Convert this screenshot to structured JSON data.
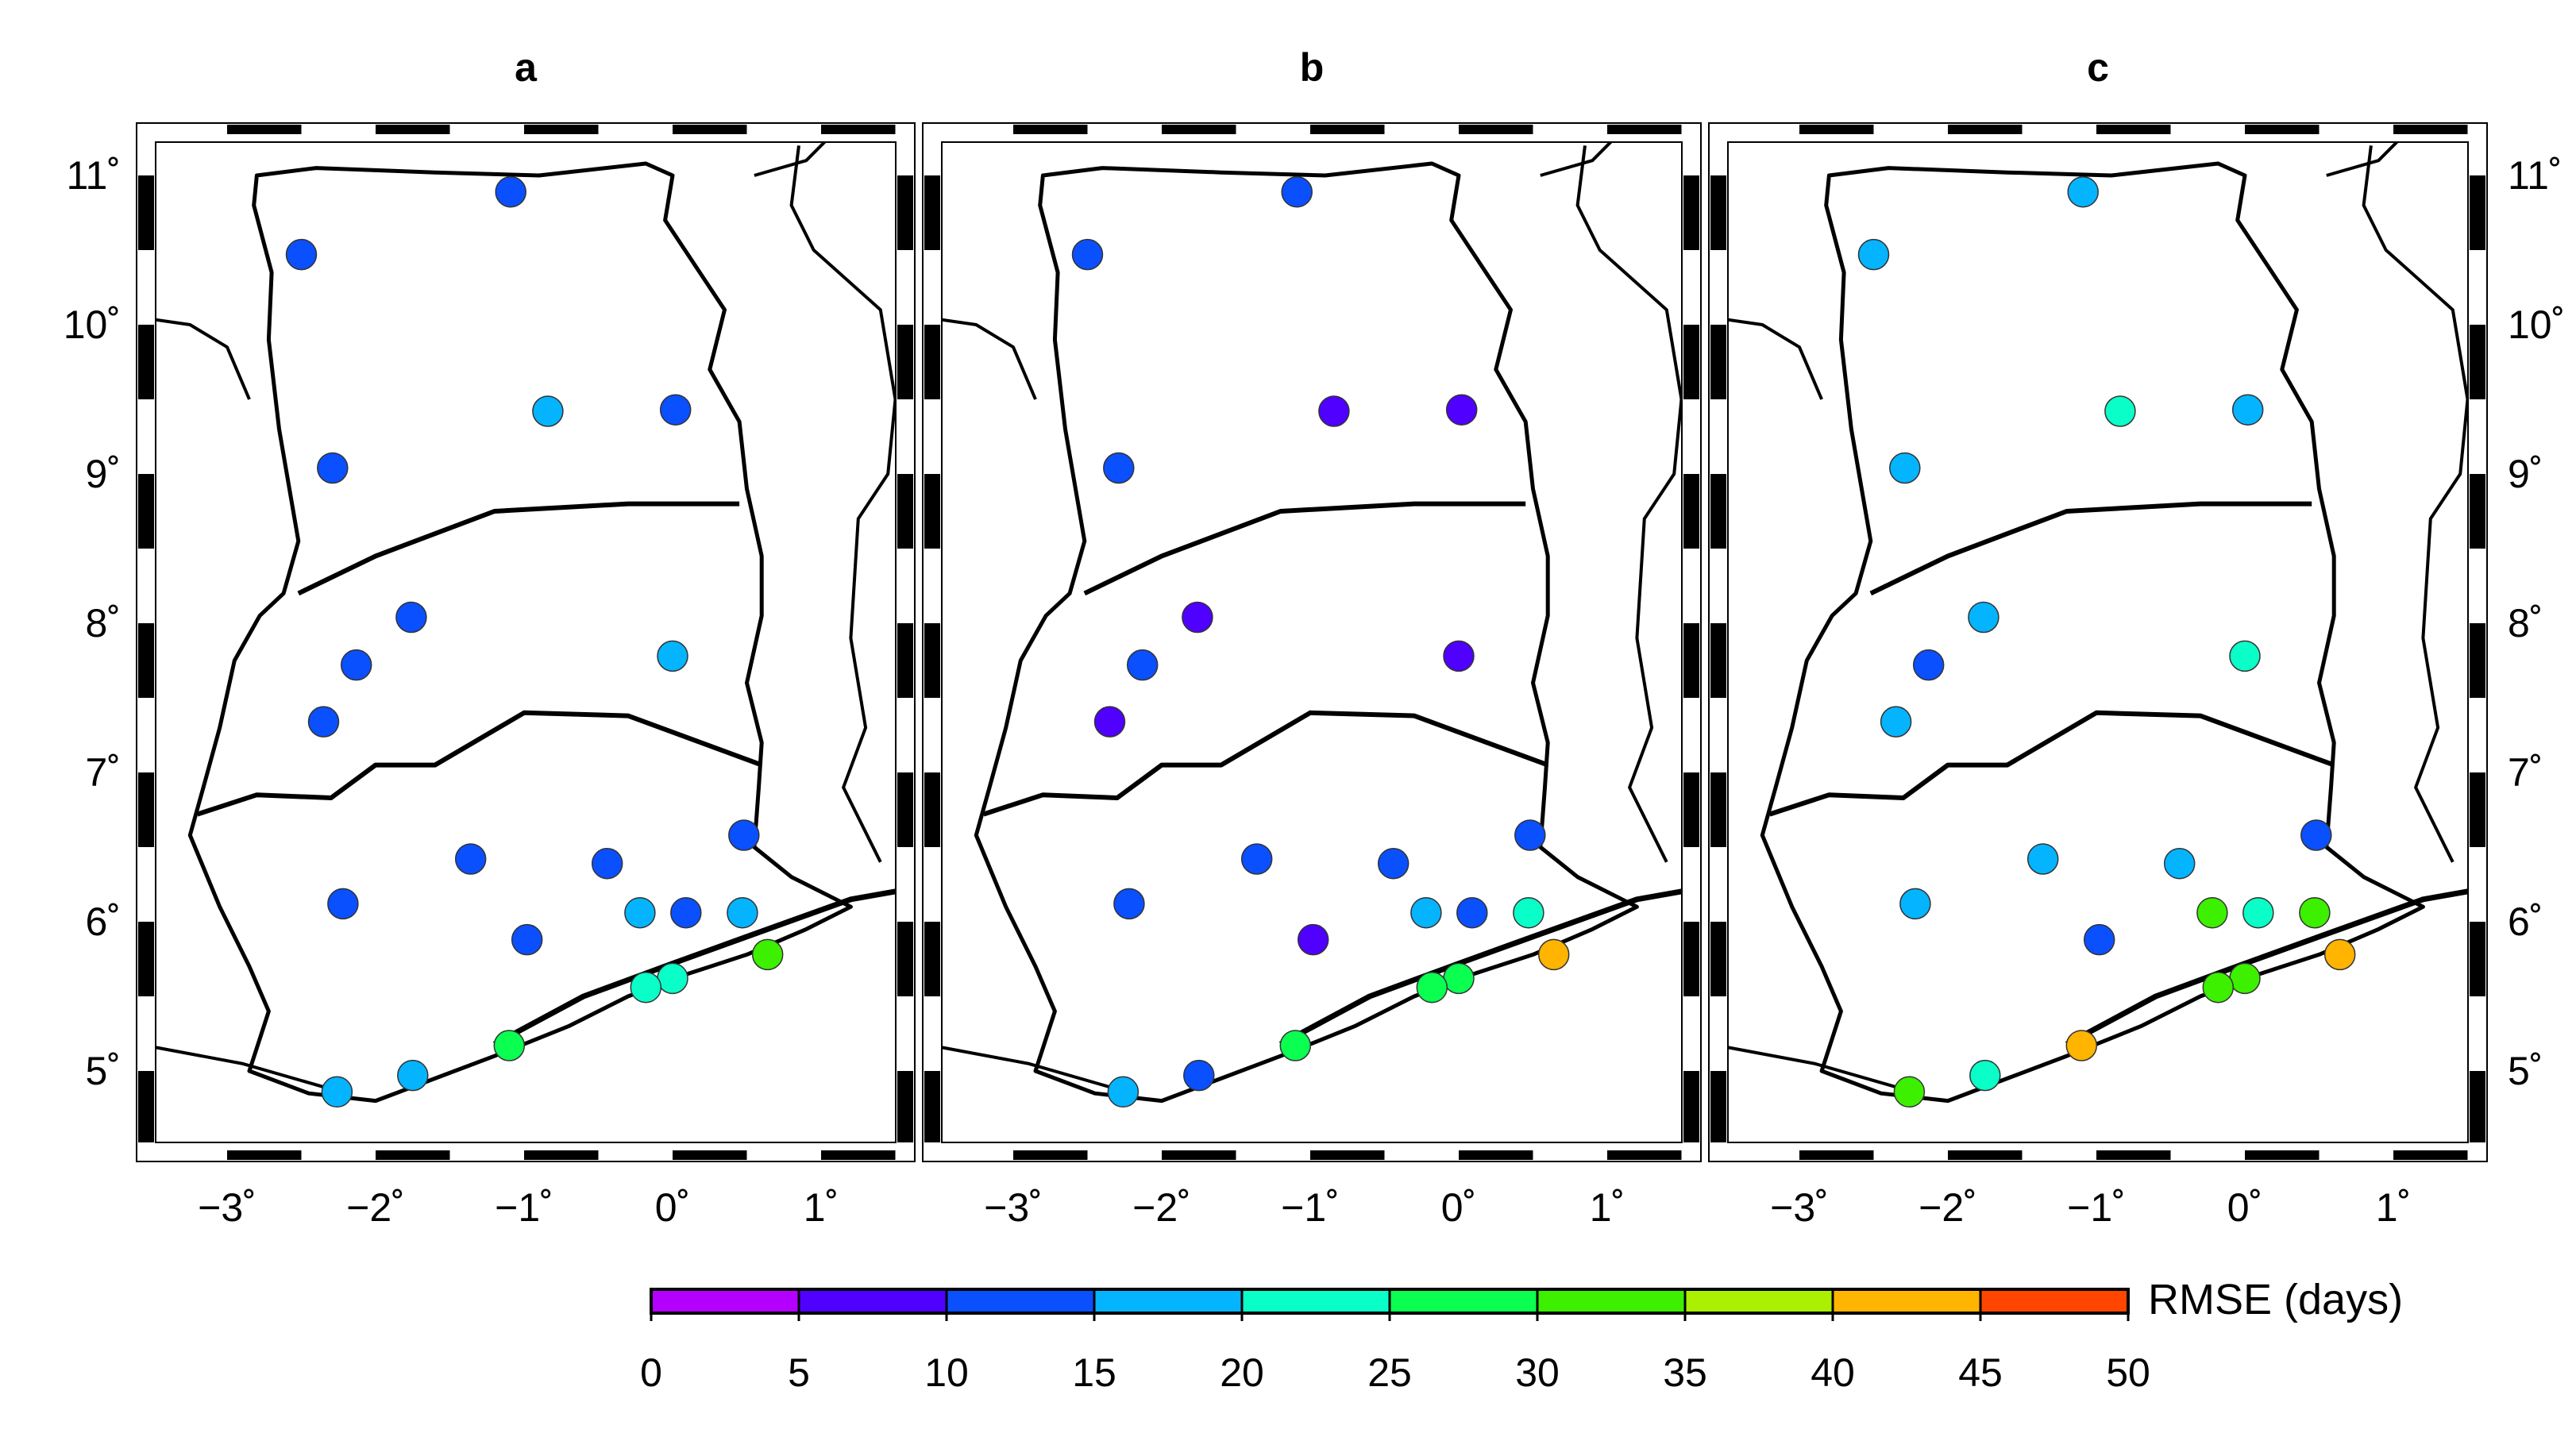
{
  "panels": [
    {
      "label": "a",
      "stations": [
        {
          "lon": -1.09,
          "lat": 10.89,
          "rmse": 12
        },
        {
          "lon": -2.5,
          "lat": 10.47,
          "rmse": 12
        },
        {
          "lon": -0.84,
          "lat": 9.42,
          "rmse": 19
        },
        {
          "lon": 0.02,
          "lat": 9.43,
          "rmse": 12
        },
        {
          "lon": -2.29,
          "lat": 9.04,
          "rmse": 12
        },
        {
          "lon": -1.76,
          "lat": 8.04,
          "rmse": 12
        },
        {
          "lon": -2.13,
          "lat": 7.72,
          "rmse": 12
        },
        {
          "lon": -2.35,
          "lat": 7.34,
          "rmse": 12
        },
        {
          "lon": 0.0,
          "lat": 7.78,
          "rmse": 17
        },
        {
          "lon": 0.48,
          "lat": 6.58,
          "rmse": 12
        },
        {
          "lon": -1.36,
          "lat": 6.42,
          "rmse": 12
        },
        {
          "lon": -0.44,
          "lat": 6.39,
          "rmse": 12
        },
        {
          "lon": -2.22,
          "lat": 6.12,
          "rmse": 12
        },
        {
          "lon": -0.22,
          "lat": 6.06,
          "rmse": 17
        },
        {
          "lon": 0.09,
          "lat": 6.06,
          "rmse": 12
        },
        {
          "lon": 0.47,
          "lat": 6.06,
          "rmse": 19
        },
        {
          "lon": -0.98,
          "lat": 5.88,
          "rmse": 12
        },
        {
          "lon": 0.64,
          "lat": 5.78,
          "rmse": 34
        },
        {
          "lon": 0.0,
          "lat": 5.62,
          "rmse": 22
        },
        {
          "lon": -0.18,
          "lat": 5.56,
          "rmse": 22
        },
        {
          "lon": -1.1,
          "lat": 5.17,
          "rmse": 28
        },
        {
          "lon": -1.75,
          "lat": 4.97,
          "rmse": 17
        },
        {
          "lon": -2.26,
          "lat": 4.86,
          "rmse": 17
        }
      ]
    },
    {
      "label": "b",
      "stations": [
        {
          "lon": -1.09,
          "lat": 10.89,
          "rmse": 12
        },
        {
          "lon": -2.5,
          "lat": 10.47,
          "rmse": 12
        },
        {
          "lon": -0.84,
          "lat": 9.42,
          "rmse": 8
        },
        {
          "lon": 0.02,
          "lat": 9.43,
          "rmse": 8
        },
        {
          "lon": -2.29,
          "lat": 9.04,
          "rmse": 12
        },
        {
          "lon": -1.76,
          "lat": 8.04,
          "rmse": 8
        },
        {
          "lon": -2.13,
          "lat": 7.72,
          "rmse": 12
        },
        {
          "lon": -2.35,
          "lat": 7.34,
          "rmse": 7
        },
        {
          "lon": 0.0,
          "lat": 7.78,
          "rmse": 8
        },
        {
          "lon": 0.48,
          "lat": 6.58,
          "rmse": 12
        },
        {
          "lon": -1.36,
          "lat": 6.42,
          "rmse": 12
        },
        {
          "lon": -0.44,
          "lat": 6.39,
          "rmse": 12
        },
        {
          "lon": -2.22,
          "lat": 6.12,
          "rmse": 12
        },
        {
          "lon": -0.22,
          "lat": 6.06,
          "rmse": 17
        },
        {
          "lon": 0.09,
          "lat": 6.06,
          "rmse": 12
        },
        {
          "lon": 0.47,
          "lat": 6.06,
          "rmse": 22
        },
        {
          "lon": -0.98,
          "lat": 5.88,
          "rmse": 8
        },
        {
          "lon": 0.64,
          "lat": 5.78,
          "rmse": 43
        },
        {
          "lon": 0.0,
          "lat": 5.62,
          "rmse": 28
        },
        {
          "lon": -0.18,
          "lat": 5.56,
          "rmse": 28
        },
        {
          "lon": -1.1,
          "lat": 5.17,
          "rmse": 28
        },
        {
          "lon": -1.75,
          "lat": 4.97,
          "rmse": 12
        },
        {
          "lon": -2.26,
          "lat": 4.86,
          "rmse": 17
        }
      ]
    },
    {
      "label": "c",
      "stations": [
        {
          "lon": -1.09,
          "lat": 10.89,
          "rmse": 17
        },
        {
          "lon": -2.5,
          "lat": 10.47,
          "rmse": 17
        },
        {
          "lon": -0.84,
          "lat": 9.42,
          "rmse": 22
        },
        {
          "lon": 0.02,
          "lat": 9.43,
          "rmse": 17
        },
        {
          "lon": -2.29,
          "lat": 9.04,
          "rmse": 17
        },
        {
          "lon": -1.76,
          "lat": 8.04,
          "rmse": 17
        },
        {
          "lon": -2.13,
          "lat": 7.72,
          "rmse": 12
        },
        {
          "lon": -2.35,
          "lat": 7.34,
          "rmse": 17
        },
        {
          "lon": 0.0,
          "lat": 7.78,
          "rmse": 22
        },
        {
          "lon": 0.48,
          "lat": 6.58,
          "rmse": 12
        },
        {
          "lon": -1.36,
          "lat": 6.42,
          "rmse": 17
        },
        {
          "lon": -0.44,
          "lat": 6.39,
          "rmse": 17
        },
        {
          "lon": -2.22,
          "lat": 6.12,
          "rmse": 17
        },
        {
          "lon": -0.22,
          "lat": 6.06,
          "rmse": 32
        },
        {
          "lon": 0.09,
          "lat": 6.06,
          "rmse": 22
        },
        {
          "lon": 0.47,
          "lat": 6.06,
          "rmse": 32
        },
        {
          "lon": -0.98,
          "lat": 5.88,
          "rmse": 12
        },
        {
          "lon": 0.64,
          "lat": 5.78,
          "rmse": 43
        },
        {
          "lon": 0.0,
          "lat": 5.62,
          "rmse": 32
        },
        {
          "lon": -0.18,
          "lat": 5.56,
          "rmse": 32
        },
        {
          "lon": -1.1,
          "lat": 5.17,
          "rmse": 43
        },
        {
          "lon": -1.75,
          "lat": 4.97,
          "rmse": 22
        },
        {
          "lon": -2.26,
          "lat": 4.86,
          "rmse": 32
        }
      ]
    }
  ],
  "axes": {
    "lon_range": [
      -3.6,
      1.6
    ],
    "lat_range": [
      4.45,
      11.3
    ],
    "lon_ticks": [
      {
        "value": -3,
        "label": "−3˚"
      },
      {
        "value": -2,
        "label": "−2˚"
      },
      {
        "value": -1,
        "label": "−1˚"
      },
      {
        "value": 0,
        "label": "0˚"
      },
      {
        "value": 1,
        "label": "1˚"
      }
    ],
    "lat_ticks": [
      {
        "value": 5,
        "label": "5˚"
      },
      {
        "value": 6,
        "label": "6˚"
      },
      {
        "value": 7,
        "label": "7˚"
      },
      {
        "value": 8,
        "label": "8˚"
      },
      {
        "value": 9,
        "label": "9˚"
      },
      {
        "value": 10,
        "label": "10˚"
      },
      {
        "value": 11,
        "label": "11˚"
      }
    ]
  },
  "colorbar": {
    "label": "RMSE (days)",
    "bins": [
      {
        "min": 0,
        "max": 5,
        "color": "#b400ff"
      },
      {
        "min": 5,
        "max": 10,
        "color": "#5000ff"
      },
      {
        "min": 10,
        "max": 15,
        "color": "#0a50ff"
      },
      {
        "min": 15,
        "max": 20,
        "color": "#05b4ff"
      },
      {
        "min": 20,
        "max": 25,
        "color": "#0affc8"
      },
      {
        "min": 25,
        "max": 30,
        "color": "#0aff50"
      },
      {
        "min": 30,
        "max": 35,
        "color": "#3cf000"
      },
      {
        "min": 35,
        "max": 40,
        "color": "#aaf000"
      },
      {
        "min": 40,
        "max": 45,
        "color": "#ffb400"
      },
      {
        "min": 45,
        "max": 50,
        "color": "#ff4600"
      }
    ],
    "tick_labels": [
      "0",
      "5",
      "10",
      "15",
      "20",
      "25",
      "30",
      "35",
      "40",
      "45",
      "50"
    ]
  }
}
